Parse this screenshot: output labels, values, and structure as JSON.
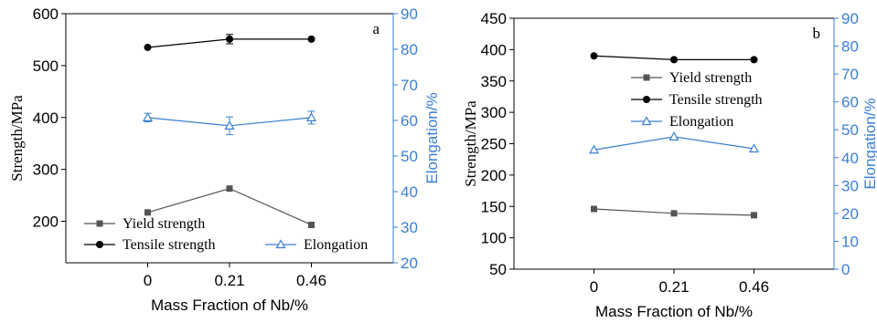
{
  "colors": {
    "axis": "#000000",
    "right_axis": "#3a7fd5",
    "yield": "#555555",
    "tensile": "#000000",
    "elongation": "#3a7fd5"
  },
  "chart_data": [
    {
      "panel_label": "a",
      "type": "line",
      "categories": [
        "0",
        "0.21",
        "0.46"
      ],
      "xlabel": "Mass Fraction of Nb/%",
      "ylabel": "Strength/MPa",
      "ylabel_right": "Elongation/%",
      "ylim": [
        120,
        600
      ],
      "yticks": [
        200,
        300,
        400,
        500,
        600
      ],
      "ylim_right": [
        20,
        90
      ],
      "yticks_right": [
        20,
        30,
        40,
        50,
        60,
        70,
        80,
        90
      ],
      "legend_placement": "bottom",
      "series": [
        {
          "name": "Yield strength",
          "axis": "left",
          "marker": "square",
          "values": [
            217,
            263,
            193
          ],
          "err": [
            0,
            0,
            0
          ]
        },
        {
          "name": "Tensile strength",
          "axis": "left",
          "marker": "circle",
          "values": [
            535,
            551,
            551
          ],
          "err": [
            0,
            9,
            0
          ]
        },
        {
          "name": "Elongation",
          "axis": "right",
          "marker": "triangle",
          "values": [
            60.8,
            58.5,
            60.8
          ],
          "err": [
            1.2,
            2.5,
            1.8
          ]
        }
      ]
    },
    {
      "panel_label": "b",
      "type": "line",
      "categories": [
        "0",
        "0.21",
        "0.46"
      ],
      "xlabel": "Mass Fraction of Nb/%",
      "ylabel": "Strength/MPa",
      "ylabel_right": "Elongation/%",
      "ylim": [
        50,
        450
      ],
      "yticks": [
        50,
        100,
        150,
        200,
        250,
        300,
        350,
        400,
        450
      ],
      "ylim_right": [
        0,
        90
      ],
      "yticks_right": [
        0,
        10,
        20,
        30,
        40,
        50,
        60,
        70,
        80,
        90
      ],
      "legend_placement": "center",
      "series": [
        {
          "name": "Yield strength",
          "axis": "left",
          "marker": "square",
          "values": [
            146,
            139,
            136
          ],
          "err": [
            0,
            0,
            0
          ]
        },
        {
          "name": "Tensile strength",
          "axis": "left",
          "marker": "circle",
          "values": [
            390,
            384,
            384
          ],
          "err": [
            0,
            0,
            0
          ]
        },
        {
          "name": "Elongation",
          "axis": "right",
          "marker": "triangle",
          "values": [
            42.8,
            47.5,
            43.2
          ],
          "err": [
            0,
            0,
            0
          ]
        }
      ]
    }
  ]
}
